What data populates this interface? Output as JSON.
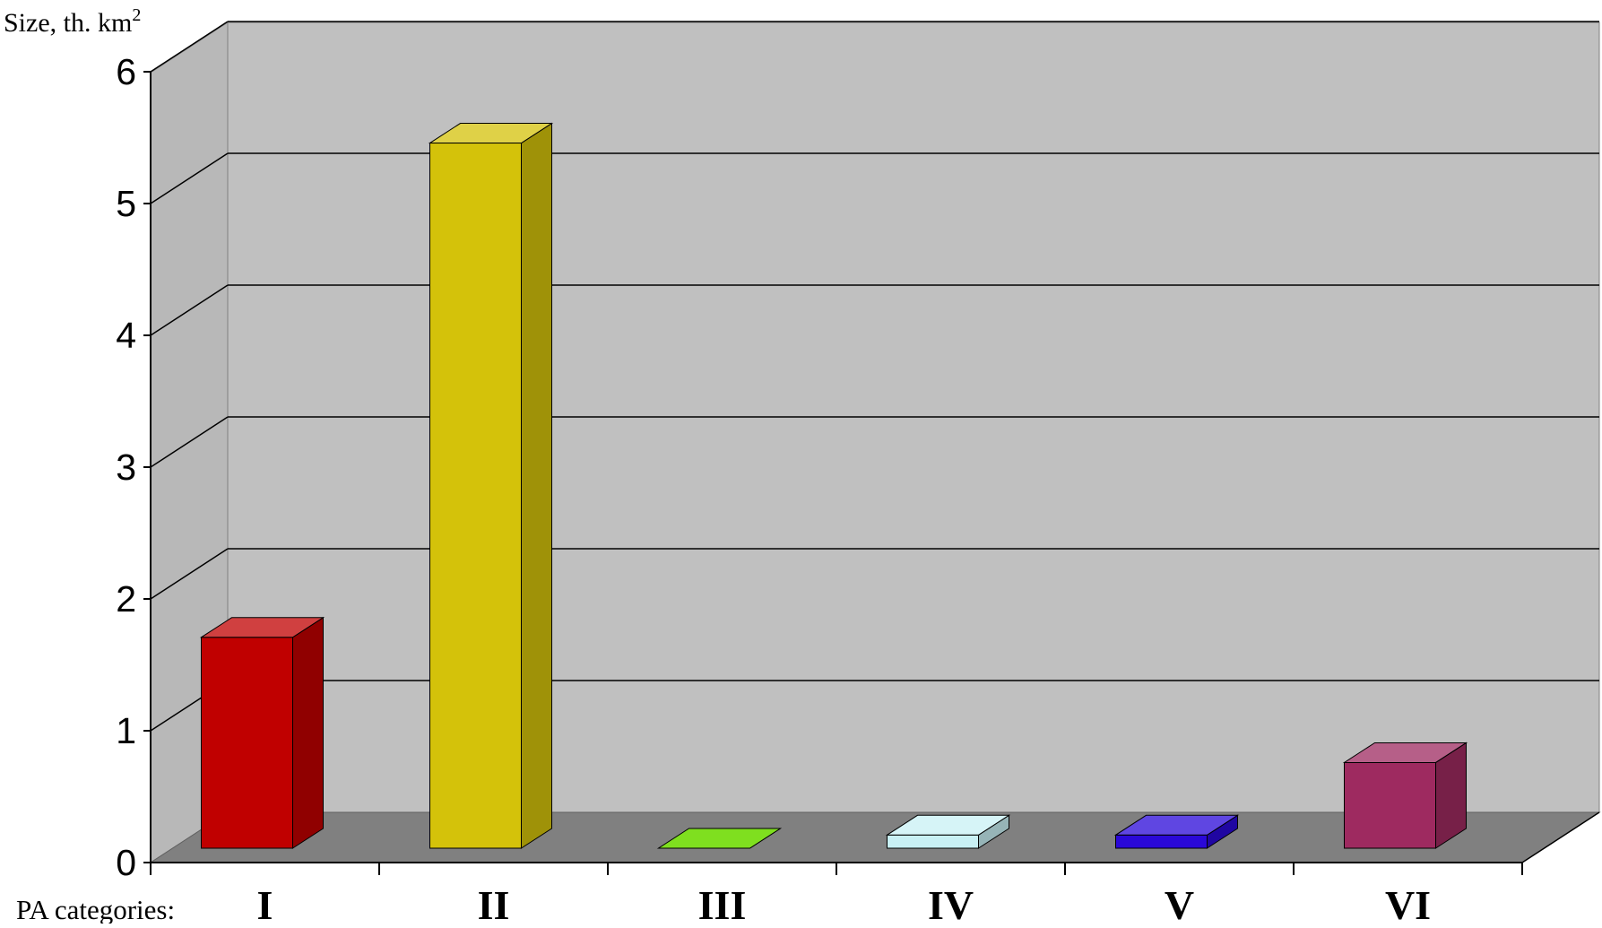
{
  "chart_data": {
    "type": "bar",
    "title": "",
    "ylabel": "Size, th. km",
    "ylabel_superscript": "2",
    "xlabel": "PA categories:",
    "categories": [
      "I",
      "II",
      "III",
      "IV",
      "V",
      "VI"
    ],
    "values": [
      1.6,
      5.35,
      0.0,
      0.1,
      0.1,
      0.65
    ],
    "colors": [
      "#c00000",
      "#d4c20a",
      "#7fdf1f",
      "#c8f0f4",
      "#2a08d8",
      "#9e2a60"
    ],
    "ylim": [
      0,
      6
    ],
    "yticks": [
      "0",
      "1",
      "2",
      "3",
      "4",
      "5",
      "6"
    ],
    "grid": true,
    "legend": "none",
    "style": "3d"
  }
}
